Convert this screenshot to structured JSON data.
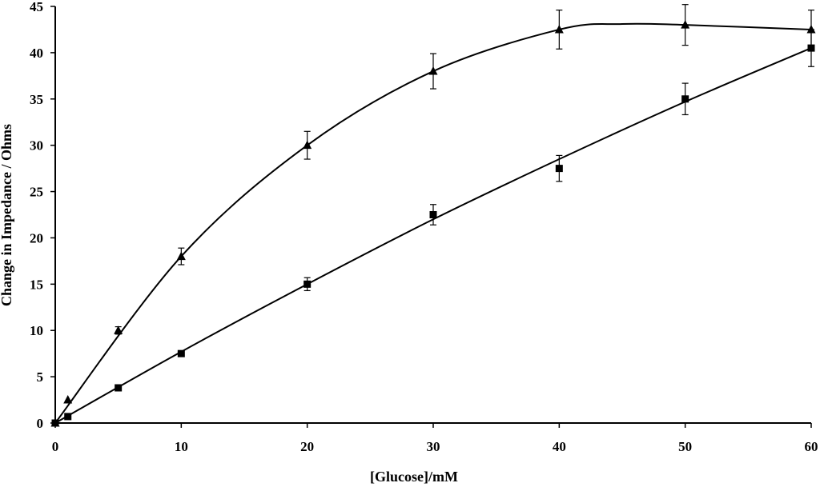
{
  "chart_data": {
    "type": "scatter",
    "title": "",
    "xlabel": "[Glucose]/mM",
    "ylabel": "Change in Impedance / Ohms",
    "xlim": [
      0,
      60
    ],
    "ylim": [
      0,
      45
    ],
    "xticks": [
      0,
      10,
      20,
      30,
      40,
      50,
      60
    ],
    "yticks": [
      0,
      5,
      10,
      15,
      20,
      25,
      30,
      35,
      40,
      45
    ],
    "grid": false,
    "legend": "none",
    "series": [
      {
        "marker": "triangle",
        "color": "#000000",
        "points": [
          {
            "x": 0,
            "y": 0,
            "err": 0
          },
          {
            "x": 1,
            "y": 2.5,
            "err": 0
          },
          {
            "x": 5,
            "y": 10,
            "err": 0.4
          },
          {
            "x": 10,
            "y": 18,
            "err": 0.9
          },
          {
            "x": 20,
            "y": 30,
            "err": 1.5
          },
          {
            "x": 30,
            "y": 38,
            "err": 1.9
          },
          {
            "x": 40,
            "y": 42.5,
            "err": 2.1
          },
          {
            "x": 50,
            "y": 43,
            "err": 2.2
          },
          {
            "x": 60,
            "y": 42.5,
            "err": 2.1
          }
        ],
        "fit": [
          [
            0,
            0
          ],
          [
            10,
            18
          ],
          [
            20,
            30
          ],
          [
            30,
            38
          ],
          [
            40,
            42.5
          ],
          [
            45,
            43.1
          ],
          [
            50,
            43
          ],
          [
            60,
            42.5
          ]
        ]
      },
      {
        "marker": "square",
        "color": "#000000",
        "points": [
          {
            "x": 0,
            "y": 0,
            "err": 0
          },
          {
            "x": 1,
            "y": 0.7,
            "err": 0
          },
          {
            "x": 5,
            "y": 3.8,
            "err": 0
          },
          {
            "x": 10,
            "y": 7.5,
            "err": 0.3
          },
          {
            "x": 20,
            "y": 15,
            "err": 0.7
          },
          {
            "x": 30,
            "y": 22.5,
            "err": 1.1
          },
          {
            "x": 40,
            "y": 27.5,
            "err": 1.4
          },
          {
            "x": 50,
            "y": 35,
            "err": 1.7
          },
          {
            "x": 60,
            "y": 40.5,
            "err": 2.0
          }
        ],
        "fit": [
          [
            0,
            0
          ],
          [
            10,
            7.7
          ],
          [
            20,
            15
          ],
          [
            30,
            22
          ],
          [
            40,
            28.5
          ],
          [
            50,
            34.7
          ],
          [
            60,
            40.5
          ]
        ]
      }
    ]
  }
}
